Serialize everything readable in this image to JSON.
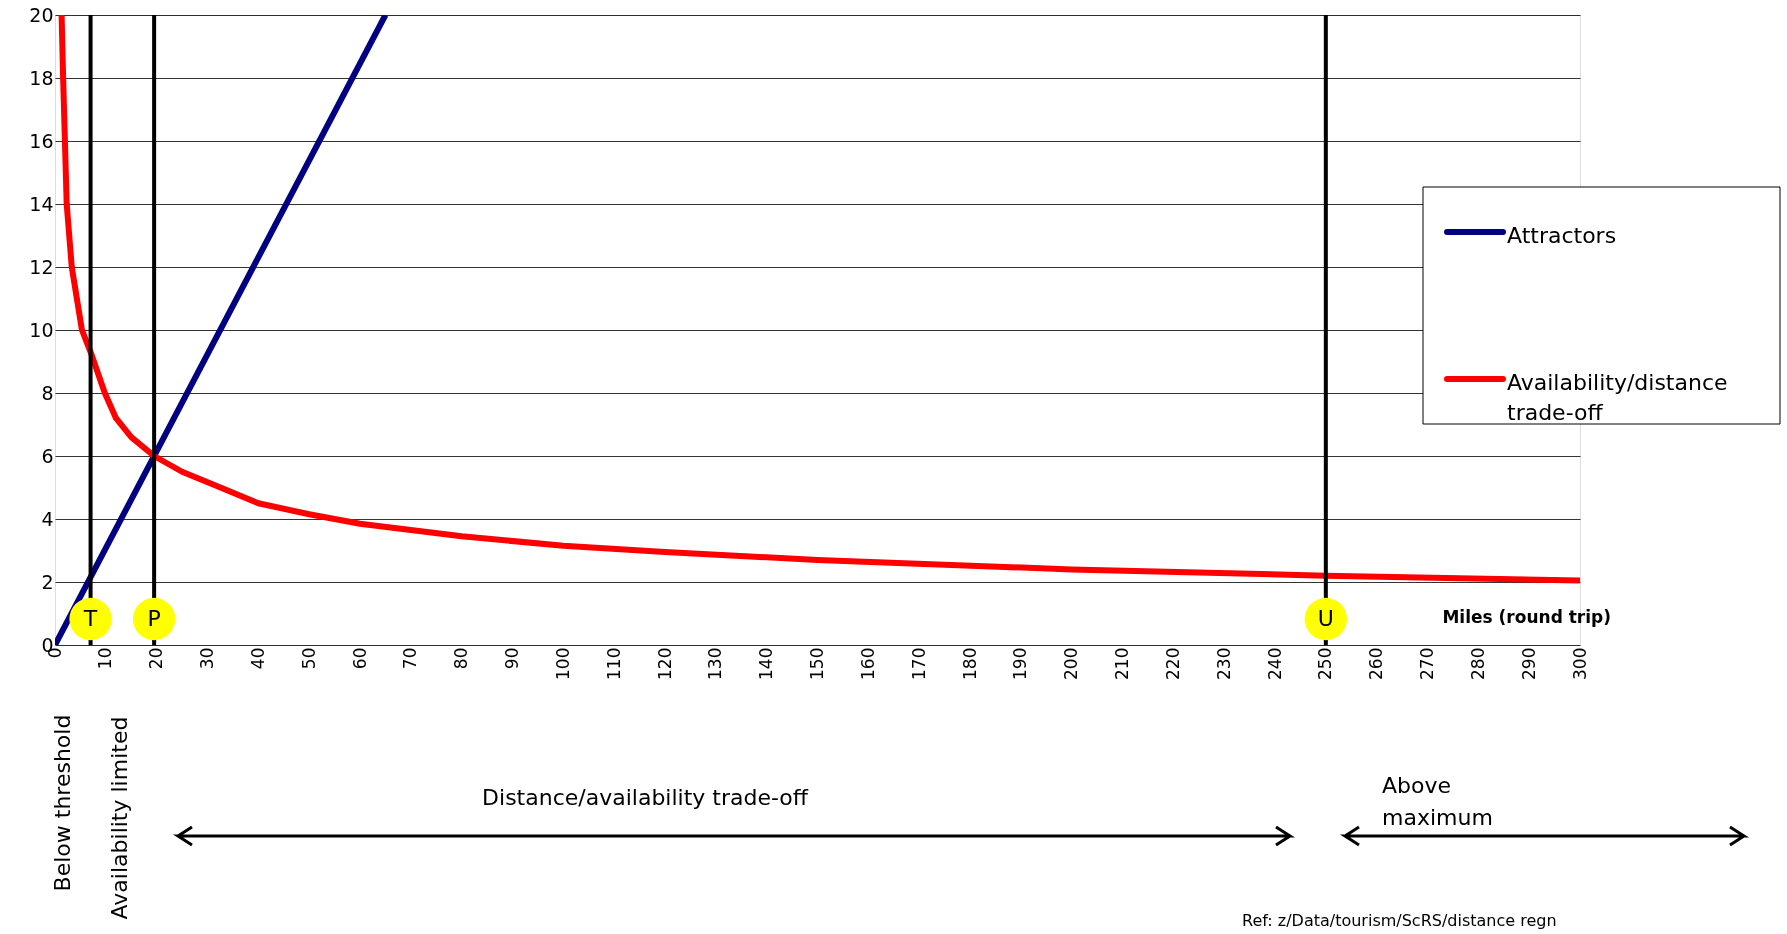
{
  "chart_data": {
    "type": "line",
    "xlabel": "Miles (round trip)",
    "xlim": [
      0,
      300
    ],
    "xticks": [
      0,
      10,
      20,
      30,
      40,
      50,
      60,
      70,
      80,
      90,
      100,
      110,
      120,
      130,
      140,
      150,
      160,
      170,
      180,
      190,
      200,
      210,
      220,
      230,
      240,
      250,
      260,
      270,
      280,
      290,
      300
    ],
    "ylim": [
      0,
      20
    ],
    "yticks": [
      0,
      2,
      4,
      6,
      8,
      10,
      12,
      14,
      16,
      18,
      20
    ],
    "grid": "y",
    "legend": "right",
    "line_style": "solid",
    "marker": "none",
    "series": [
      {
        "name": "Attractors",
        "color": "#000080",
        "x": [
          0,
          65
        ],
        "values": [
          0,
          20
        ]
      },
      {
        "name": "Availability/distance trade-off",
        "color": "#ff0000",
        "x": [
          1.3,
          1.6,
          1.95,
          2.3,
          3.3,
          5.3,
          7,
          9.8,
          12,
          15,
          19.5,
          25,
          31,
          40,
          50,
          60,
          80,
          100,
          120,
          150,
          200,
          250,
          300
        ],
        "values": [
          20,
          18,
          16,
          14,
          12,
          10,
          9.3,
          8,
          7.2,
          6.6,
          6,
          5.5,
          5.1,
          4.5,
          4.15,
          3.85,
          3.45,
          3.15,
          2.95,
          2.7,
          2.4,
          2.2,
          2.05
        ]
      }
    ],
    "ref_lines": [
      {
        "axis": "x",
        "value": 7,
        "label": "T",
        "color": "#000000"
      },
      {
        "axis": "x",
        "value": 19.5,
        "label": "P",
        "color": "#000000"
      },
      {
        "axis": "x",
        "value": 250,
        "label": "U",
        "color": "#000000"
      }
    ],
    "annotations": [
      "Below threshold",
      "Availability limited",
      "Distance/availability trade-off",
      "Above maximum",
      "Ref: z/Data/tourism/ScRS/distance regn"
    ]
  }
}
